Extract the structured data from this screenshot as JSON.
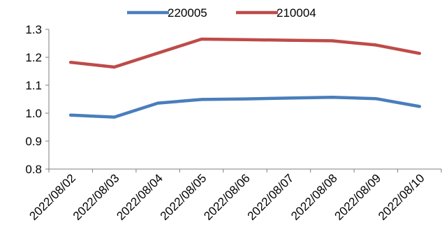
{
  "chart_data": {
    "type": "line",
    "x": [
      "2022/08/02",
      "2022/08/03",
      "2022/08/04",
      "2022/08/05",
      "2022/08/06",
      "2022/08/07",
      "2022/08/08",
      "2022/08/09",
      "2022/08/10"
    ],
    "series": [
      {
        "name": "220005",
        "color": "#4a7ebb",
        "values": [
          0.993,
          0.986,
          1.036,
          1.049,
          1.051,
          1.054,
          1.057,
          1.052,
          1.024
        ]
      },
      {
        "name": "210004",
        "color": "#be4b48",
        "values": [
          1.182,
          1.165,
          1.215,
          1.265,
          1.263,
          1.261,
          1.259,
          1.244,
          1.214
        ]
      }
    ],
    "ylim": [
      0.8,
      1.3
    ],
    "yticks": [
      "0.8",
      "0.9",
      "1.0",
      "1.1",
      "1.2",
      "1.3"
    ],
    "grid": false,
    "legend_position": "top-center"
  }
}
